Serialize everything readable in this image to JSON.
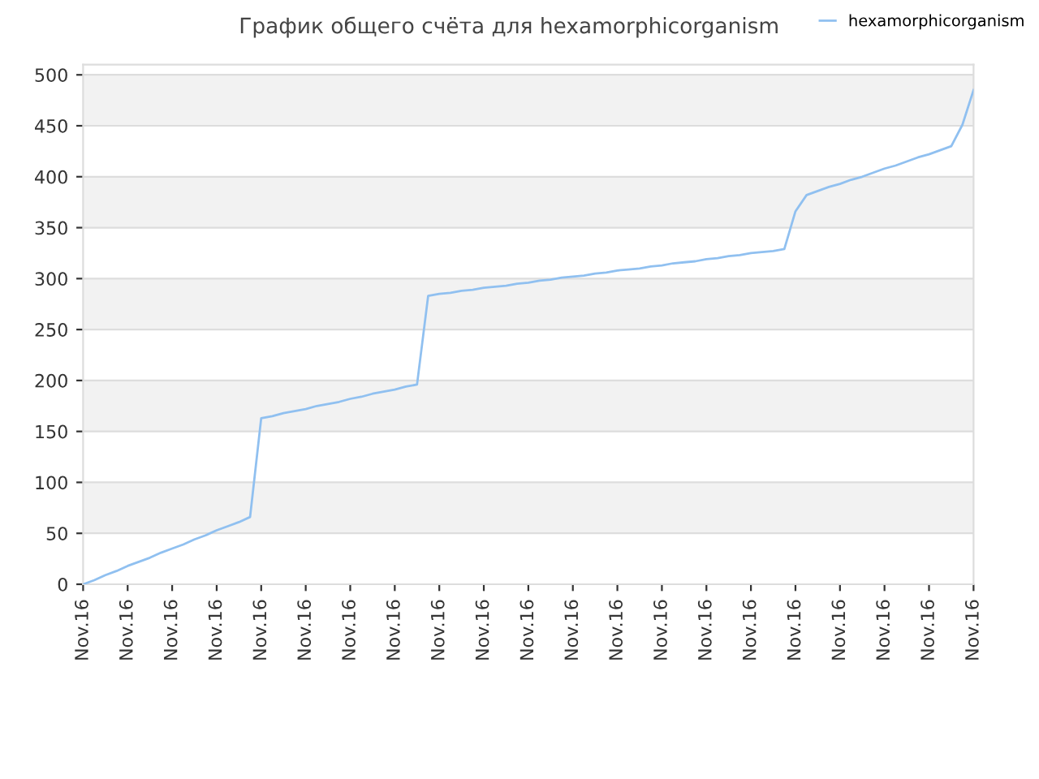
{
  "chart_data": {
    "type": "line",
    "title": "График общего счёта для hexamorphicorganism",
    "categories": [
      "Nov.16",
      null,
      null,
      null,
      "Nov.16",
      null,
      null,
      null,
      "Nov.16",
      null,
      null,
      null,
      "Nov.16",
      null,
      null,
      null,
      "Nov.16",
      null,
      null,
      null,
      "Nov.16",
      null,
      null,
      null,
      "Nov.16",
      null,
      null,
      null,
      "Nov.16",
      null,
      null,
      null,
      "Nov.16",
      null,
      null,
      null,
      "Nov.16",
      null,
      null,
      null,
      "Nov.16",
      null,
      null,
      null,
      "Nov.16",
      null,
      null,
      null,
      "Nov.16",
      null,
      null,
      null,
      "Nov.16",
      null,
      null,
      null,
      "Nov.16",
      null,
      null,
      null,
      "Nov.16",
      null,
      null,
      null,
      "Nov.16",
      null,
      null,
      null,
      "Nov.16",
      null,
      null,
      null,
      "Nov.16",
      null,
      null,
      null,
      "Nov.16",
      null,
      null,
      null,
      "Nov.16"
    ],
    "ylim": [
      0,
      510
    ],
    "yticks": [
      0,
      50,
      100,
      150,
      200,
      250,
      300,
      350,
      400,
      450,
      500
    ],
    "grid": "y",
    "legend": "top right",
    "marker": "none",
    "line_style": "solid",
    "bands": [
      {
        "axis": "y",
        "from": 50,
        "to": 100,
        "color": "#f2f2f2"
      },
      {
        "axis": "y",
        "from": 150,
        "to": 200,
        "color": "#f2f2f2"
      },
      {
        "axis": "y",
        "from": 250,
        "to": 300,
        "color": "#f2f2f2"
      },
      {
        "axis": "y",
        "from": 350,
        "to": 400,
        "color": "#f2f2f2"
      },
      {
        "axis": "y",
        "from": 450,
        "to": 500,
        "color": "#f2f2f2"
      }
    ],
    "series": [
      {
        "name": "hexamorphicorganism",
        "color": "#90c0f0",
        "values": [
          0,
          4,
          9,
          13,
          18,
          22,
          26,
          31,
          35,
          39,
          44,
          48,
          53,
          57,
          61,
          66,
          163,
          165,
          168,
          170,
          172,
          175,
          177,
          179,
          182,
          184,
          187,
          189,
          191,
          194,
          196,
          283,
          285,
          286,
          288,
          289,
          291,
          292,
          293,
          295,
          296,
          298,
          299,
          301,
          302,
          303,
          305,
          306,
          308,
          309,
          310,
          312,
          313,
          315,
          316,
          317,
          319,
          320,
          322,
          323,
          325,
          326,
          327,
          329,
          366,
          382,
          386,
          390,
          393,
          397,
          400,
          404,
          408,
          411,
          415,
          419,
          422,
          426,
          430,
          451,
          485
        ]
      }
    ]
  }
}
